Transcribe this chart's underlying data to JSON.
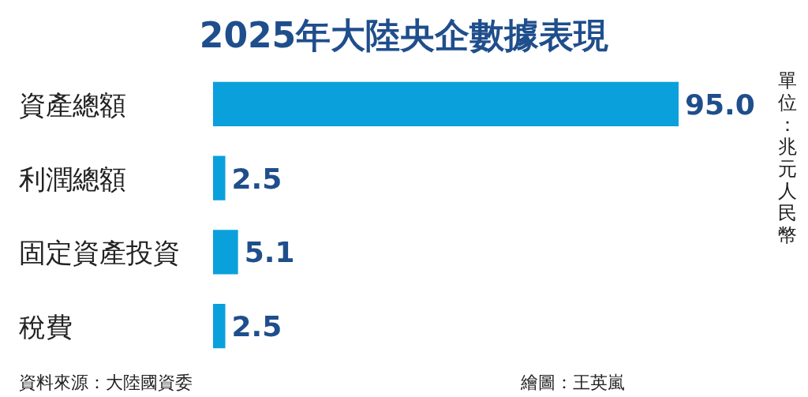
{
  "chart_data": {
    "type": "bar",
    "orientation": "horizontal",
    "title": "2025年大陸央企數據表現",
    "categories": [
      "資產總額",
      "利潤總額",
      "固定資產投資",
      "稅費"
    ],
    "values": [
      95.0,
      2.5,
      5.1,
      2.5
    ],
    "value_labels": [
      "95.0",
      "2.5",
      "5.1",
      "2.5"
    ],
    "color": "#0aa0dc",
    "annotations": [
      "單位：兆元人民幣",
      "資料來源：大陸國資委",
      "繪圖：王英嵐"
    ]
  }
}
